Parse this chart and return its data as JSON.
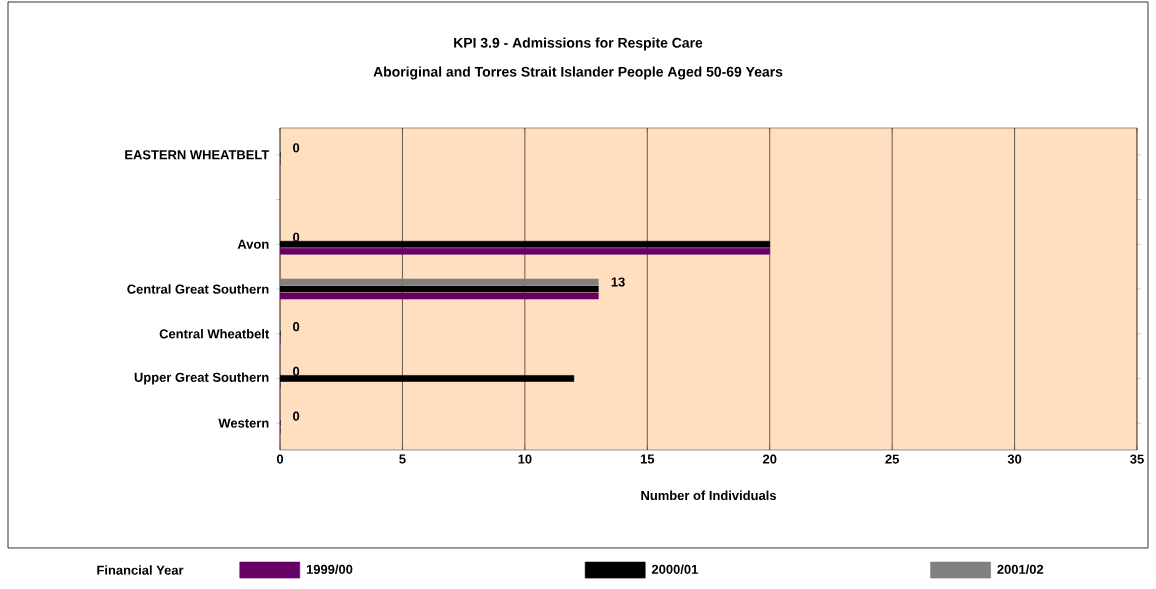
{
  "chart_data": {
    "type": "bar",
    "orientation": "horizontal",
    "title": "KPI 3.9 - Admissions for Respite Care",
    "subtitle": "Aboriginal and Torres Strait Islander People Aged 50-69 Years",
    "xlabel": "Number of Individuals",
    "legend_title": "Financial Year",
    "categories": [
      "EASTERN WHEATBELT",
      null,
      "Avon",
      "Central Great Southern",
      "Central Wheatbelt",
      "Upper Great Southern",
      "Western"
    ],
    "series": [
      {
        "name": "1999/00",
        "color": "#660066",
        "values": [
          0,
          null,
          20,
          13,
          0,
          0,
          0
        ]
      },
      {
        "name": "2000/01",
        "color": "#000000",
        "values": [
          0,
          null,
          20,
          13,
          0,
          12,
          0
        ]
      },
      {
        "name": "2001/02",
        "color": "#808080",
        "values": [
          0,
          null,
          0,
          13,
          0,
          0,
          0
        ],
        "value_labels": [
          "0",
          null,
          "0",
          "13",
          "0",
          "0",
          "0"
        ]
      }
    ],
    "xlim": [
      0,
      35
    ],
    "xticks": [
      0,
      5,
      10,
      15,
      20,
      25,
      30,
      35
    ],
    "grid": "x",
    "legend": "bottom"
  }
}
